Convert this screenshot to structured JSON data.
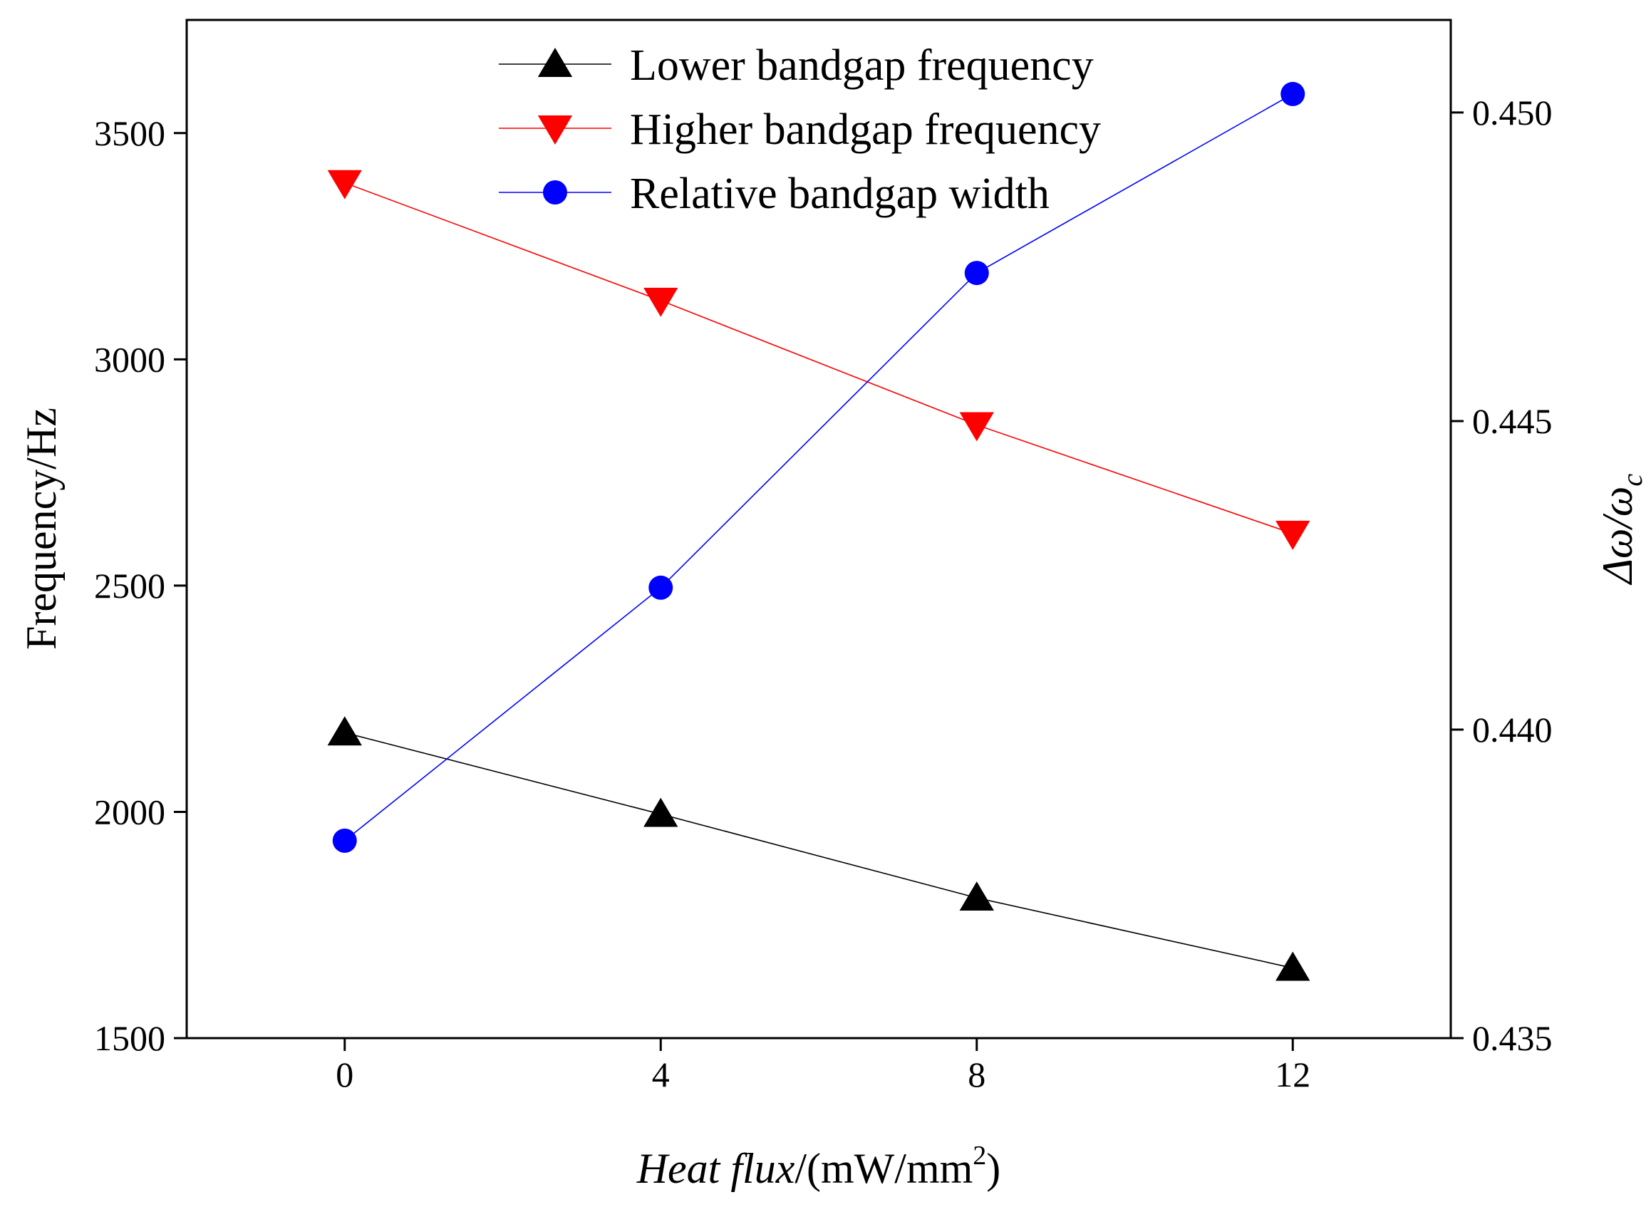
{
  "chart_data": {
    "type": "line",
    "title": "",
    "x": [
      0,
      4,
      8,
      12
    ],
    "xlim": [
      -2,
      14
    ],
    "x_ticks": [
      "0",
      "4",
      "8",
      "12"
    ],
    "xlabel": {
      "italic": "Heat flux",
      "unit_prefix": "/(mW/mm",
      "unit_sup": "2",
      "unit_suffix": ")"
    },
    "ylabel": "Frequency/Hz",
    "ylim": [
      1500,
      3750
    ],
    "y_ticks": [
      "1500",
      "2000",
      "2500",
      "3000",
      "3500"
    ],
    "y2label": {
      "num": "Δω/ω",
      "sub": "c"
    },
    "y2lim": [
      0.435,
      0.4515
    ],
    "y2_ticks": [
      "0.435",
      "0.440",
      "0.445",
      "0.450"
    ],
    "series": [
      {
        "name": "Lower bandgap frequency",
        "axis": "left",
        "color": "#000000",
        "marker": "triangle-up",
        "values": [
          2175,
          1995,
          1810,
          1655
        ]
      },
      {
        "name": "Higher bandgap frequency",
        "axis": "right-freq",
        "color": "#ff0000",
        "marker": "triangle-down",
        "values": [
          3390,
          3130,
          2855,
          2615
        ]
      },
      {
        "name": "Relative bandgap width",
        "axis": "right",
        "color": "#0000ff",
        "marker": "circle",
        "values": [
          0.4382,
          0.4423,
          0.4474,
          0.4503
        ]
      }
    ],
    "legend_position": "top-center",
    "grid": false
  }
}
